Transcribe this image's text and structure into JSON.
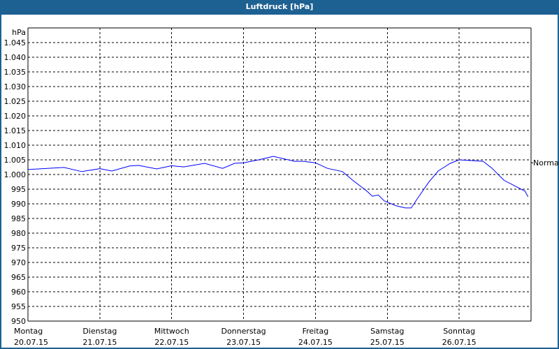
{
  "window": {
    "title": "Luftdruck [hPa]"
  },
  "chart_data": {
    "type": "line",
    "title": "Luftdruck [hPa]",
    "ylabel": "hPa",
    "ylim": [
      950,
      1050
    ],
    "yticks": [
      950,
      955,
      960,
      965,
      970,
      975,
      980,
      985,
      990,
      995,
      1000,
      1005,
      1010,
      1015,
      1020,
      1025,
      1030,
      1035,
      1040,
      1045
    ],
    "ytick_labels": [
      "950",
      "955",
      "960",
      "965",
      "970",
      "975",
      "980",
      "985",
      "990",
      "995",
      "1.000",
      "1.005",
      "1.010",
      "1.015",
      "1.020",
      "1.025",
      "1.030",
      "1.035",
      "1.040",
      "1.045"
    ],
    "xlim": [
      "20.07.15 00:00",
      "27.07.15 00:00"
    ],
    "xticks": [
      {
        "day": "Montag",
        "date": "20.07.15"
      },
      {
        "day": "Dienstag",
        "date": "21.07.15"
      },
      {
        "day": "Mittwoch",
        "date": "22.07.15"
      },
      {
        "day": "Donnerstag",
        "date": "23.07.15"
      },
      {
        "day": "Freitag",
        "date": "24.07.15"
      },
      {
        "day": "Samstag",
        "date": "25.07.15"
      },
      {
        "day": "Sonntag",
        "date": "26.07.15"
      }
    ],
    "grid": true,
    "reference_line": {
      "label": "Normal",
      "value": 1004
    },
    "series_color": "#0000ff",
    "points": [
      [
        "20.07.15 00:00",
        1001.7
      ],
      [
        "20.07.15 05:00",
        1002.0
      ],
      [
        "20.07.15 12:00",
        1002.4
      ],
      [
        "20.07.15 18:00",
        1001.0
      ],
      [
        "21.07.15 00:00",
        1002.0
      ],
      [
        "21.07.15 04:00",
        1001.2
      ],
      [
        "21.07.15 10:00",
        1002.9
      ],
      [
        "21.07.15 13:00",
        1003.1
      ],
      [
        "21.07.15 19:00",
        1001.9
      ],
      [
        "22.07.15 00:00",
        1003.0
      ],
      [
        "22.07.15 04:00",
        1002.6
      ],
      [
        "22.07.15 11:00",
        1003.8
      ],
      [
        "22.07.15 17:00",
        1002.1
      ],
      [
        "22.07.15 21:00",
        1003.8
      ],
      [
        "23.07.15 00:00",
        1004.0
      ],
      [
        "23.07.15 05:00",
        1005.0
      ],
      [
        "23.07.15 10:00",
        1006.2
      ],
      [
        "23.07.15 17:00",
        1004.5
      ],
      [
        "23.07.15 20:00",
        1004.5
      ],
      [
        "24.07.15 00:00",
        1004.0
      ],
      [
        "24.07.15 04:00",
        1002.1
      ],
      [
        "24.07.15 09:00",
        1001.0
      ],
      [
        "24.07.15 13:00",
        997.6
      ],
      [
        "24.07.15 17:00",
        994.5
      ],
      [
        "24.07.15 19:00",
        992.6
      ],
      [
        "24.07.15 21:00",
        993.0
      ],
      [
        "24.07.15 23:00",
        991.0
      ],
      [
        "25.07.15 03:00",
        989.3
      ],
      [
        "25.07.15 06:00",
        988.6
      ],
      [
        "25.07.15 08:00",
        988.6
      ],
      [
        "25.07.15 10:00",
        991.7
      ],
      [
        "25.07.15 14:00",
        997.6
      ],
      [
        "25.07.15 17:00",
        1001.2
      ],
      [
        "25.07.15 21:00",
        1003.8
      ],
      [
        "26.07.15 00:00",
        1005.0
      ],
      [
        "26.07.15 03:00",
        1004.8
      ],
      [
        "26.07.15 08:00",
        1004.5
      ],
      [
        "26.07.15 11:00",
        1002.1
      ],
      [
        "26.07.15 15:00",
        998.0
      ],
      [
        "26.07.15 18:00",
        996.4
      ],
      [
        "26.07.15 22:00",
        994.3
      ],
      [
        "26.07.15 23:00",
        992.4
      ]
    ]
  }
}
